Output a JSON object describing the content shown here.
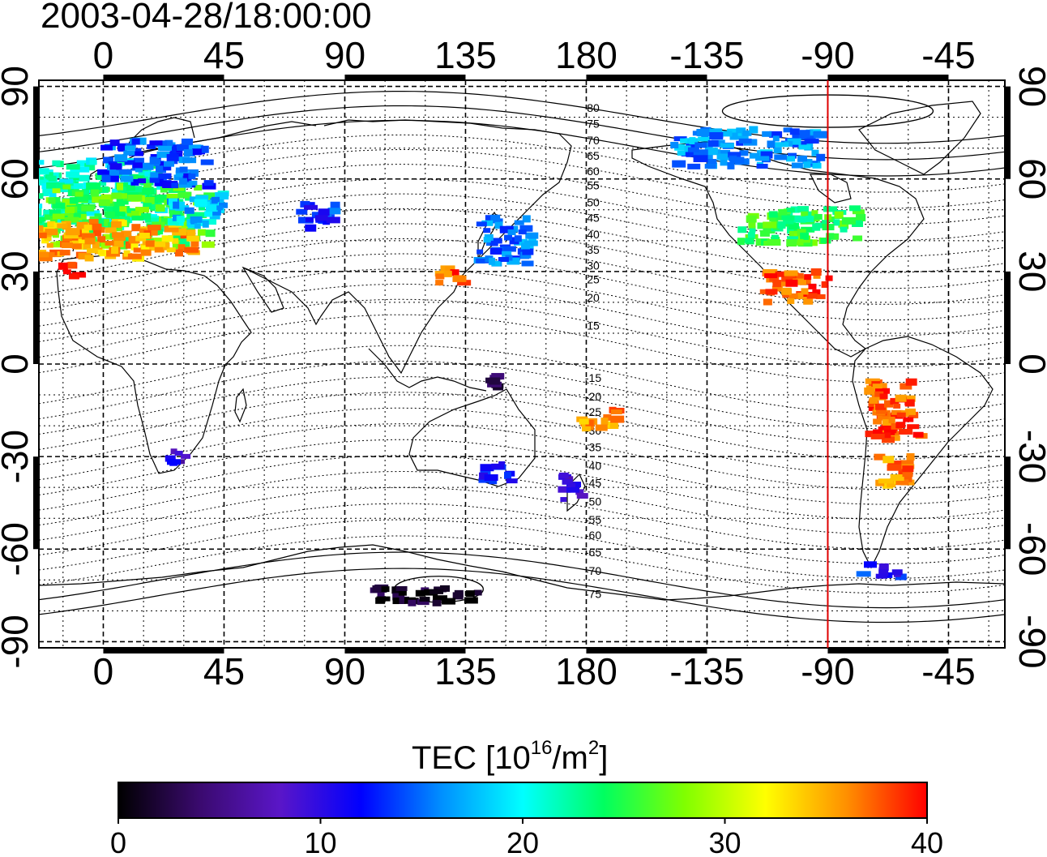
{
  "title": "2003-04-28/18:00:00",
  "colorbar": {
    "label_main": "TEC  [10",
    "label_exp1": "16",
    "label_mid": "/m",
    "label_exp2": "2",
    "label_end": "]",
    "min": 0,
    "max": 40,
    "ticks": [
      "0",
      "10",
      "20",
      "30",
      "40"
    ],
    "colors": [
      "#000000",
      "#3a0a6e",
      "#5a16c8",
      "#0000ff",
      "#0090ff",
      "#00ffff",
      "#00ff60",
      "#80ff00",
      "#ffff00",
      "#ff9000",
      "#ff0000"
    ]
  },
  "axes": {
    "x_ticks": [
      "0",
      "45",
      "90",
      "135",
      "180",
      "-135",
      "-90",
      "-45"
    ],
    "x_tick_lon": [
      0,
      45,
      90,
      135,
      180,
      225,
      270,
      315
    ],
    "y_ticks": [
      "90",
      "60",
      "30",
      "0",
      "-30",
      "-60",
      "-90"
    ],
    "y_tick_lat": [
      90,
      60,
      30,
      0,
      -30,
      -60,
      -90
    ],
    "lon_range": [
      -24,
      336
    ],
    "lat_range": [
      -92,
      92
    ]
  },
  "terminator_line": {
    "lon": -90,
    "color": "#e00000"
  },
  "contour_labels": {
    "north": [
      "80",
      "75",
      "70",
      "65",
      "60",
      "55",
      "50",
      "45",
      "40",
      "35",
      "30",
      "25",
      "20",
      "15"
    ],
    "north_lat": [
      83,
      78,
      72.5,
      67.5,
      62.5,
      58,
      52.5,
      47.5,
      42,
      37,
      32,
      27.5,
      21.5,
      12.5
    ],
    "south": [
      "-15",
      "-20",
      "-25",
      "-30",
      "-35",
      "-40",
      "-45",
      "-50",
      "-55",
      "-60",
      "-65",
      "-70",
      "-75"
    ],
    "south_lat": [
      -4.5,
      -10.5,
      -15.5,
      -21.5,
      -27,
      -33,
      -38.5,
      -44.5,
      -50.5,
      -55.5,
      -61,
      -67,
      -74.5
    ]
  },
  "tec_clusters": [
    {
      "lon": -5,
      "lat": 55,
      "w": 55,
      "h": 22,
      "tec": 22
    },
    {
      "lon": 10,
      "lat": 48,
      "w": 60,
      "h": 20,
      "tec": 26
    },
    {
      "lon": 5,
      "lat": 40,
      "w": 60,
      "h": 12,
      "tec": 35
    },
    {
      "lon": 20,
      "lat": 65,
      "w": 40,
      "h": 15,
      "tec": 14
    },
    {
      "lon": -12,
      "lat": 30,
      "w": 6,
      "h": 6,
      "tec": 40
    },
    {
      "lon": 35,
      "lat": 50,
      "w": 20,
      "h": 12,
      "tec": 18
    },
    {
      "lon": 80,
      "lat": 48,
      "w": 15,
      "h": 8,
      "tec": 13
    },
    {
      "lon": 150,
      "lat": 40,
      "w": 20,
      "h": 15,
      "tec": 15
    },
    {
      "lon": 130,
      "lat": 28,
      "w": 10,
      "h": 6,
      "tec": 38
    },
    {
      "lon": 260,
      "lat": 45,
      "w": 45,
      "h": 12,
      "tec": 25
    },
    {
      "lon": 258,
      "lat": 25,
      "w": 25,
      "h": 10,
      "tec": 38
    },
    {
      "lon": 240,
      "lat": 70,
      "w": 55,
      "h": 12,
      "tec": 16
    },
    {
      "lon": 295,
      "lat": -15,
      "w": 20,
      "h": 20,
      "tec": 38
    },
    {
      "lon": 295,
      "lat": -35,
      "w": 12,
      "h": 10,
      "tec": 36
    },
    {
      "lon": 290,
      "lat": -67,
      "w": 15,
      "h": 4,
      "tec": 12
    },
    {
      "lon": 147,
      "lat": -35,
      "w": 12,
      "h": 6,
      "tec": 12
    },
    {
      "lon": 175,
      "lat": -40,
      "w": 8,
      "h": 8,
      "tec": 8
    },
    {
      "lon": 185,
      "lat": -18,
      "w": 15,
      "h": 7,
      "tec": 36
    },
    {
      "lon": 28,
      "lat": -30,
      "w": 8,
      "h": 5,
      "tec": 9
    },
    {
      "lon": 120,
      "lat": -75,
      "w": 40,
      "h": 5,
      "tec": 1
    },
    {
      "lon": 145,
      "lat": -5,
      "w": 8,
      "h": 6,
      "tec": 2
    }
  ]
}
